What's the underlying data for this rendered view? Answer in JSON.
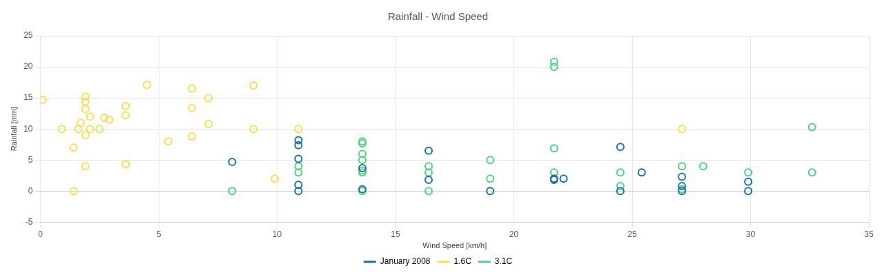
{
  "chart_data": {
    "type": "scatter",
    "title": "Rainfall - Wind Speed",
    "xlabel": "Wind Speed [km/h]",
    "ylabel": "Rainfall [mm]",
    "xlim": [
      0,
      35
    ],
    "xticks": [
      0,
      5,
      10,
      15,
      20,
      25,
      30,
      35
    ],
    "ylim": [
      -5,
      25
    ],
    "yticks": [
      -5,
      0,
      5,
      10,
      15,
      20,
      25
    ],
    "grid": true,
    "legend": "bottom",
    "marker": "circle",
    "series": [
      {
        "name": "January 2008",
        "color": "#1a6fa6",
        "x": [
          8.1,
          10.9,
          10.9,
          10.9,
          10.9,
          10.9,
          13.6,
          13.6,
          16.4,
          16.4,
          19,
          21.7,
          21.7,
          22.1,
          24.5,
          24.5,
          25.4,
          27.1,
          27.1,
          27.1,
          29.9,
          29.9
        ],
        "values": [
          4.7,
          8.2,
          7.4,
          5.2,
          1,
          0,
          3.7,
          0.3,
          6.5,
          1.8,
          0,
          2,
          1.8,
          2,
          7.1,
          0,
          3,
          2.3,
          0.8,
          0,
          1.5,
          0
        ]
      },
      {
        "name": "1.6C",
        "color": "#fddd4f",
        "x": [
          0.1,
          0.9,
          1.4,
          1.4,
          1.6,
          1.7,
          1.9,
          1.9,
          1.9,
          1.9,
          1.9,
          2.1,
          2.1,
          2.5,
          2.7,
          2.9,
          3.6,
          3.6,
          3.6,
          4.5,
          5.4,
          6.4,
          6.4,
          6.4,
          7.1,
          7.1,
          9,
          9,
          9.9,
          10.9,
          27.1
        ],
        "values": [
          14.7,
          10,
          7,
          0,
          10,
          11,
          15.2,
          14.4,
          13.2,
          9,
          4,
          12,
          10,
          10,
          11.8,
          11.5,
          13.7,
          12.2,
          4.3,
          17.1,
          8,
          16.5,
          13.4,
          8.8,
          15,
          10.8,
          17,
          10,
          2,
          10,
          10
        ]
      },
      {
        "name": "3.1C",
        "color": "#4dd283",
        "x": [
          8.1,
          10.9,
          10.9,
          13.6,
          13.6,
          13.6,
          13.6,
          13.6,
          13.6,
          13.6,
          16.4,
          16.4,
          16.4,
          19,
          19,
          21.7,
          21.7,
          21.7,
          21.7,
          24.5,
          24.5,
          27.1,
          27.1,
          28,
          29.9,
          32.6,
          32.6
        ],
        "values": [
          0,
          4,
          3,
          8,
          7.7,
          6,
          5,
          3.3,
          3,
          0,
          4,
          3,
          0,
          5,
          2,
          20.8,
          20,
          6.9,
          3,
          3,
          0.8,
          4,
          0.3,
          4,
          3,
          10.3,
          3
        ]
      }
    ]
  }
}
